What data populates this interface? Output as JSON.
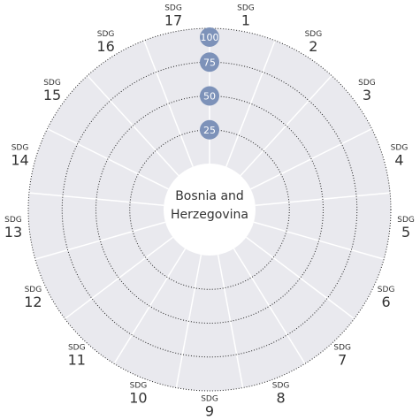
{
  "chart_data": {
    "type": "radial",
    "center_label": "Bosnia and Herzegovina",
    "categories": [
      {
        "prefix": "SDG",
        "number": "1"
      },
      {
        "prefix": "SDG",
        "number": "2"
      },
      {
        "prefix": "SDG",
        "number": "3"
      },
      {
        "prefix": "SDG",
        "number": "4"
      },
      {
        "prefix": "SDG",
        "number": "5"
      },
      {
        "prefix": "SDG",
        "number": "6"
      },
      {
        "prefix": "SDG",
        "number": "7"
      },
      {
        "prefix": "SDG",
        "number": "8"
      },
      {
        "prefix": "SDG",
        "number": "9"
      },
      {
        "prefix": "SDG",
        "number": "10"
      },
      {
        "prefix": "SDG",
        "number": "11"
      },
      {
        "prefix": "SDG",
        "number": "12"
      },
      {
        "prefix": "SDG",
        "number": "13"
      },
      {
        "prefix": "SDG",
        "number": "14"
      },
      {
        "prefix": "SDG",
        "number": "15"
      },
      {
        "prefix": "SDG",
        "number": "16"
      },
      {
        "prefix": "SDG",
        "number": "17"
      }
    ],
    "ylim": [
      0,
      100
    ],
    "yticks": [
      25,
      50,
      75,
      100
    ],
    "grid": true,
    "sector_color": "#e9e9ee",
    "tick_badge_color": "#7d92b9"
  }
}
